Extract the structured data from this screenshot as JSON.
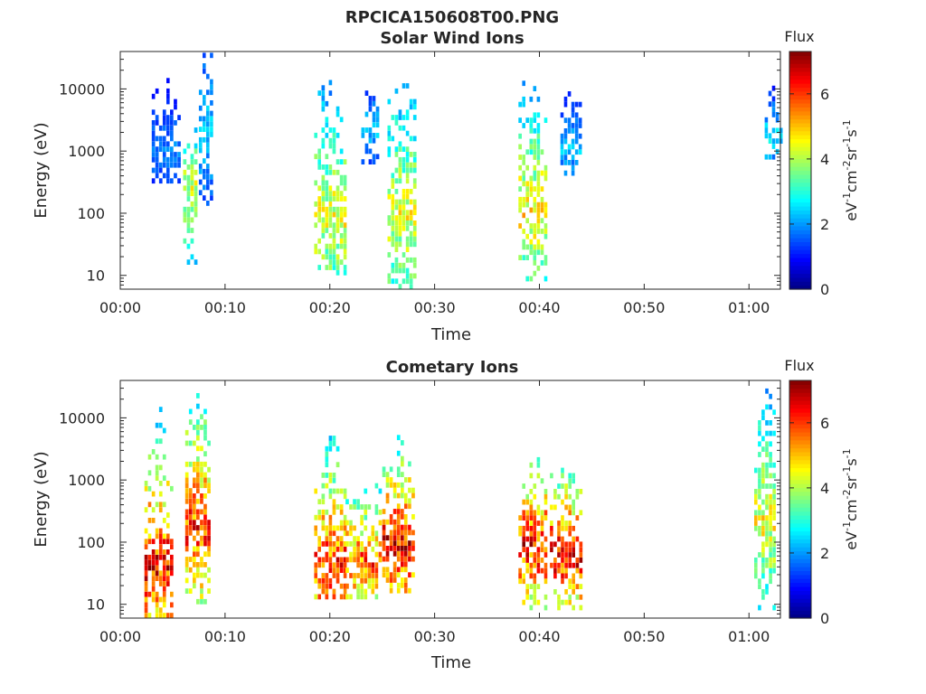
{
  "figure": {
    "title": "RPCICA150608T00.PNG"
  },
  "colorbar": {
    "label": "Flux",
    "unit_base": "eV",
    "unit_sup1": "-1",
    "unit_cm": "cm",
    "unit_sup2": "-2",
    "unit_sr": "sr",
    "unit_sup3": "-1",
    "unit_s": "s",
    "unit_sup4": "-1",
    "range": [
      0,
      7.3
    ],
    "ticks": [
      "0",
      "2",
      "4",
      "6"
    ],
    "colormap": "jet"
  },
  "chart_data": [
    {
      "type": "heatmap",
      "title": "Solar Wind Ions",
      "xlabel": "Time",
      "ylabel": "Energy (eV)",
      "x_ticks": [
        "00:00",
        "00:10",
        "00:20",
        "00:30",
        "00:40",
        "00:50",
        "01:00"
      ],
      "x_range_min": [
        0,
        63
      ],
      "y_ticks": [
        "10",
        "100",
        "1000",
        "10000"
      ],
      "y_scale": "log",
      "y_range_eV": [
        6,
        40000
      ],
      "bursts": [
        {
          "t_min": [
            6.0,
            7.3
          ],
          "energy_eV": [
            10,
            2000
          ],
          "peak_flux": 4.6,
          "peak_eV": 200
        },
        {
          "t_min": [
            7.5,
            8.8
          ],
          "energy_eV": [
            60,
            35000
          ],
          "peak_flux": 2.6,
          "peak_eV": 2000
        },
        {
          "t_min": [
            3.0,
            5.5
          ],
          "energy_eV": [
            300,
            15000
          ],
          "peak_flux": 2.0,
          "peak_eV": 1000
        },
        {
          "t_min": [
            18.5,
            21.5
          ],
          "energy_eV": [
            10,
            20000
          ],
          "peak_flux": 4.8,
          "peak_eV": 80
        },
        {
          "t_min": [
            23.0,
            24.5
          ],
          "energy_eV": [
            500,
            8000
          ],
          "peak_flux": 2.6,
          "peak_eV": 2000
        },
        {
          "t_min": [
            25.5,
            28.0
          ],
          "energy_eV": [
            6,
            15000
          ],
          "peak_flux": 4.8,
          "peak_eV": 80
        },
        {
          "t_min": [
            38.0,
            40.5
          ],
          "energy_eV": [
            8,
            15000
          ],
          "peak_flux": 5.0,
          "peak_eV": 100
        },
        {
          "t_min": [
            42.0,
            44.0
          ],
          "energy_eV": [
            400,
            10000
          ],
          "peak_flux": 2.5,
          "peak_eV": 1000
        },
        {
          "t_min": [
            61.5,
            63.0
          ],
          "energy_eV": [
            600,
            10000
          ],
          "peak_flux": 2.8,
          "peak_eV": 1500
        }
      ]
    },
    {
      "type": "heatmap",
      "title": "Cometary Ions",
      "xlabel": "Time",
      "ylabel": "Energy (eV)",
      "x_ticks": [
        "00:00",
        "00:10",
        "00:20",
        "00:30",
        "00:40",
        "00:50",
        "01:00"
      ],
      "x_range_min": [
        0,
        63
      ],
      "y_ticks": [
        "10",
        "100",
        "1000",
        "10000"
      ],
      "y_scale": "log",
      "y_range_eV": [
        6,
        40000
      ],
      "bursts": [
        {
          "t_min": [
            2.3,
            4.8
          ],
          "energy_eV": [
            6,
            15000
          ],
          "peak_flux": 6.8,
          "peak_eV": 40
        },
        {
          "t_min": [
            6.2,
            8.5
          ],
          "energy_eV": [
            10,
            25000
          ],
          "peak_flux": 6.5,
          "peak_eV": 150
        },
        {
          "t_min": [
            18.5,
            21.5
          ],
          "energy_eV": [
            12,
            20000
          ],
          "peak_flux": 6.5,
          "peak_eV": 40
        },
        {
          "t_min": [
            21.5,
            25.0
          ],
          "energy_eV": [
            12,
            1500
          ],
          "peak_flux": 6.3,
          "peak_eV": 40
        },
        {
          "t_min": [
            25.0,
            28.0
          ],
          "energy_eV": [
            15,
            7000
          ],
          "peak_flux": 7.0,
          "peak_eV": 80
        },
        {
          "t_min": [
            38.0,
            40.5
          ],
          "energy_eV": [
            8,
            2500
          ],
          "peak_flux": 6.8,
          "peak_eV": 80
        },
        {
          "t_min": [
            41.0,
            44.0
          ],
          "energy_eV": [
            8,
            1500
          ],
          "peak_flux": 7.0,
          "peak_eV": 60
        },
        {
          "t_min": [
            60.5,
            62.5
          ],
          "energy_eV": [
            8,
            25000
          ],
          "peak_flux": 4.8,
          "peak_eV": 200
        }
      ]
    }
  ]
}
